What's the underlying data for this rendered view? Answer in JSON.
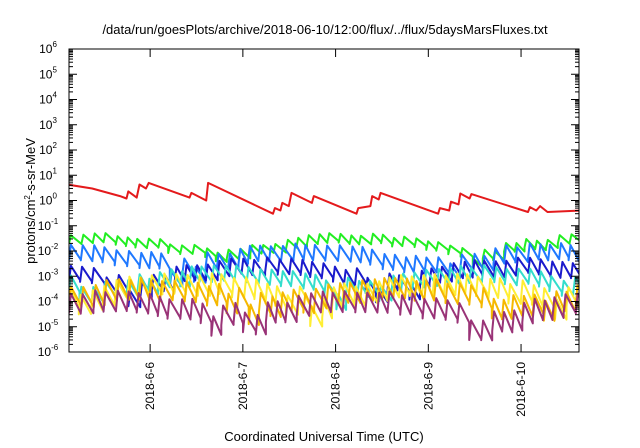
{
  "chart_data": {
    "type": "line",
    "title": "/data/run/goesPlots/archive/2018-06-10/12:00/flux/../flux/5daysMarsFluxes.txt",
    "xlabel": "Coordinated Universal Time (UTC)",
    "ylabel": "protons/cm2-s-sr-MeV",
    "yscale": "log",
    "ylim": [
      1e-06,
      1000000.0
    ],
    "y_ticks": [
      {
        "base": "10",
        "exp": "-6"
      },
      {
        "base": "10",
        "exp": "-5"
      },
      {
        "base": "10",
        "exp": "-4"
      },
      {
        "base": "10",
        "exp": "-3"
      },
      {
        "base": "10",
        "exp": "-2"
      },
      {
        "base": "10",
        "exp": "-1"
      },
      {
        "base": "10",
        "exp": "0"
      },
      {
        "base": "10",
        "exp": "1"
      },
      {
        "base": "10",
        "exp": "2"
      },
      {
        "base": "10",
        "exp": "3"
      },
      {
        "base": "10",
        "exp": "4"
      },
      {
        "base": "10",
        "exp": "5"
      },
      {
        "base": "10",
        "exp": "6"
      }
    ],
    "x_tick_labels": [
      "2018-6-6",
      "2018-6-7",
      "2018-6-8",
      "2018-6-9",
      "2018-6-10"
    ],
    "xlim_days": [
      "2018-6-5 03:00",
      "2018-6-10 15:00"
    ],
    "grid": false,
    "legend": "none",
    "series": [
      {
        "color": "#e41a1c",
        "level": 1.5,
        "style": "smooth-sawtooth"
      },
      {
        "color": "#22ee22",
        "level": 0.025,
        "style": "sawtooth"
      },
      {
        "color": "#1f78ff",
        "level": 0.008,
        "style": "sawtooth"
      },
      {
        "color": "#1a1acc",
        "level": 0.002,
        "style": "sawtooth"
      },
      {
        "color": "#33ddcc",
        "level": 0.001,
        "style": "sawtooth"
      },
      {
        "color": "#ffee33",
        "level": 0.0004,
        "style": "sawtooth"
      },
      {
        "color": "#f5b800",
        "level": 0.00025,
        "style": "sawtooth"
      },
      {
        "color": "#993377",
        "level": 8e-05,
        "style": "sawtooth"
      }
    ]
  }
}
